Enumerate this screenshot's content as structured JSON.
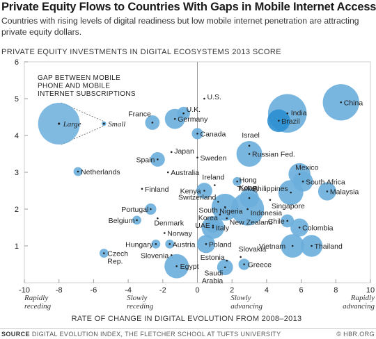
{
  "header": {
    "title": "Private Equity Flows to Countries With Gaps in Mobile Internet Access",
    "subtitle": "Countries with rising levels of digital readiness but low mobile internet penetration are attracting private equity dollars."
  },
  "footer": {
    "source_label": "SOURCE",
    "source_text": "DIGITAL EVOLUTION INDEX, THE FLETCHER SCHOOL AT TUFTS UNIVERSITY",
    "credit": "© HBR.ORG"
  },
  "colors": {
    "bubble": "#6aaedc",
    "bubble_dark": "#2b8fd0",
    "dot": "#222222",
    "axis": "#999999",
    "grid": "#e5e5e5"
  },
  "chart_data": {
    "type": "scatter",
    "ylabel": "PRIVATE EQUITY INVESTMENTS IN DIGITAL ECOSYSTEMS 2013 SCORE",
    "xlabel": "RATE OF CHANGE IN DIGITAL EVOLUTION FROM 2008–2013",
    "xlim": [
      -10,
      10
    ],
    "ylim": [
      0,
      6
    ],
    "xticks": [
      -10,
      -8,
      -6,
      -4,
      -2,
      0,
      2,
      4,
      6,
      8,
      10
    ],
    "yticks": [
      1,
      2,
      3,
      4,
      5,
      6
    ],
    "x_annotations": [
      {
        "x": -10,
        "text": "Rapidly receding"
      },
      {
        "x": -4,
        "text": "Slowly receding"
      },
      {
        "x": 2,
        "text": "Slowly advancing"
      },
      {
        "x": 8,
        "text": "Rapidly advancing"
      }
    ],
    "size_legend": {
      "title": "GAP BETWEEN MOBILE PHONE AND MOBILE INTERNET SUBSCRIPTIONS",
      "large_label": "Large",
      "small_label": "Small"
    },
    "points": [
      {
        "name": "U.S.",
        "x": 0.4,
        "y": 5.0,
        "gap": 0
      },
      {
        "name": "China",
        "x": 8.3,
        "y": 4.9,
        "gap": 35
      },
      {
        "name": "India",
        "x": 5.2,
        "y": 4.6,
        "gap": 40
      },
      {
        "name": "Brazil",
        "x": 4.7,
        "y": 4.4,
        "gap": 12
      },
      {
        "name": "U.K.",
        "x": -0.8,
        "y": 4.6,
        "gap": 3
      },
      {
        "name": "France",
        "x": -2.6,
        "y": 4.35,
        "gap": 4
      },
      {
        "name": "Germany",
        "x": -1.3,
        "y": 4.45,
        "gap": 9
      },
      {
        "name": "Canada",
        "x": 0.0,
        "y": 4.05,
        "gap": 2
      },
      {
        "name": "Israel",
        "x": 3.0,
        "y": 3.72,
        "gap": 0
      },
      {
        "name": "Russian Fed.",
        "x": 3.0,
        "y": 3.5,
        "gap": 16
      },
      {
        "name": "Japan",
        "x": -1.5,
        "y": 3.55,
        "gap": 0
      },
      {
        "name": "Sweden",
        "x": 0.0,
        "y": 3.4,
        "gap": 0
      },
      {
        "name": "Spain",
        "x": -2.3,
        "y": 3.35,
        "gap": 4
      },
      {
        "name": "Netherlands",
        "x": -6.9,
        "y": 3.02,
        "gap": 1
      },
      {
        "name": "Australia",
        "x": -1.7,
        "y": 3.0,
        "gap": 0
      },
      {
        "name": "Mexico",
        "x": 5.9,
        "y": 2.95,
        "gap": 11
      },
      {
        "name": "South Africa",
        "x": 6.1,
        "y": 2.75,
        "gap": 9
      },
      {
        "name": "Hong Kong",
        "x": 2.3,
        "y": 2.75,
        "gap": 1
      },
      {
        "name": "Ireland",
        "x": 1.0,
        "y": 2.65,
        "gap": 0
      },
      {
        "name": "Finland",
        "x": -3.2,
        "y": 2.55,
        "gap": 0
      },
      {
        "name": "Kenya",
        "x": 0.4,
        "y": 2.5,
        "gap": 5
      },
      {
        "name": "Malaysia",
        "x": 7.5,
        "y": 2.48,
        "gap": 7
      },
      {
        "name": "Philippines",
        "x": 5.4,
        "y": 2.45,
        "gap": 15
      },
      {
        "name": "Turkey",
        "x": 3.0,
        "y": 2.3,
        "gap": 8
      },
      {
        "name": "Singapore",
        "x": 4.2,
        "y": 2.25,
        "gap": 0
      },
      {
        "name": "Switzerland",
        "x": 1.2,
        "y": 2.2,
        "gap": 0
      },
      {
        "name": "Nigeria",
        "x": 1.6,
        "y": 2.05,
        "gap": 18
      },
      {
        "name": "Indonesia",
        "x": 2.9,
        "y": 2.0,
        "gap": 28
      },
      {
        "name": "Portugal",
        "x": -2.7,
        "y": 2.0,
        "gap": 2
      },
      {
        "name": "South Korea",
        "x": 1.3,
        "y": 1.85,
        "gap": 0
      },
      {
        "name": "New Zealand",
        "x": 1.7,
        "y": 1.75,
        "gap": 0
      },
      {
        "name": "Belgium",
        "x": -3.5,
        "y": 1.7,
        "gap": 1
      },
      {
        "name": "Denmark",
        "x": -2.3,
        "y": 1.75,
        "gap": 0
      },
      {
        "name": "Chile",
        "x": 5.2,
        "y": 1.68,
        "gap": 3
      },
      {
        "name": "UAE",
        "x": 0.9,
        "y": 1.55,
        "gap": 4
      },
      {
        "name": "Italy",
        "x": 0.9,
        "y": 1.5,
        "gap": 12
      },
      {
        "name": "Colombia",
        "x": 5.9,
        "y": 1.5,
        "gap": 7
      },
      {
        "name": "Norway",
        "x": -1.9,
        "y": 1.35,
        "gap": 0
      },
      {
        "name": "Hungary",
        "x": -2.4,
        "y": 1.05,
        "gap": 1
      },
      {
        "name": "Austria",
        "x": -1.6,
        "y": 1.05,
        "gap": 1
      },
      {
        "name": "Poland",
        "x": 0.5,
        "y": 1.05,
        "gap": 7
      },
      {
        "name": "Vietnam",
        "x": 5.5,
        "y": 1.0,
        "gap": 13
      },
      {
        "name": "Thailand",
        "x": 6.6,
        "y": 1.0,
        "gap": 11
      },
      {
        "name": "Czech Rep.",
        "x": -5.4,
        "y": 0.8,
        "gap": 1
      },
      {
        "name": "Slovenia",
        "x": -1.5,
        "y": 0.75,
        "gap": 0
      },
      {
        "name": "Slovakia",
        "x": 2.5,
        "y": 0.7,
        "gap": 0
      },
      {
        "name": "Estonia",
        "x": 1.7,
        "y": 0.6,
        "gap": 0
      },
      {
        "name": "Greece",
        "x": 2.7,
        "y": 0.5,
        "gap": 2
      },
      {
        "name": "Egypt",
        "x": -1.2,
        "y": 0.45,
        "gap": 14
      },
      {
        "name": "Saudi Arabia",
        "x": 1.6,
        "y": 0.42,
        "gap": 5
      }
    ]
  }
}
